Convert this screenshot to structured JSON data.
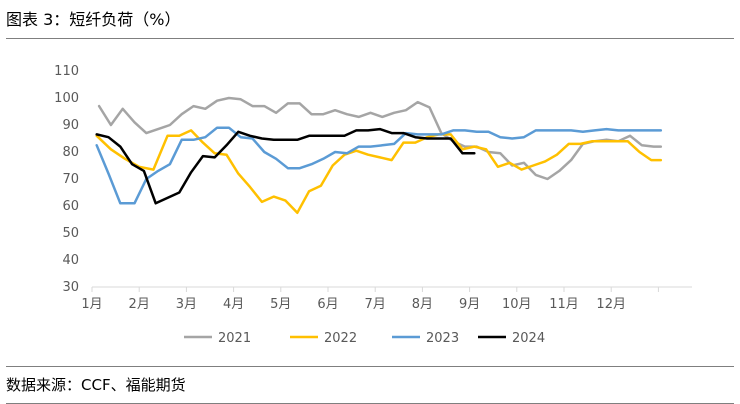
{
  "header": {
    "title": "图表 3：短纤负荷（%）"
  },
  "footer": {
    "source": "数据来源：CCF、福能期货"
  },
  "chart_data": {
    "type": "line",
    "title": "短纤负荷（%）",
    "xlabel": "",
    "ylabel": "",
    "ylim": [
      30,
      110
    ],
    "yticks": [
      30,
      40,
      50,
      60,
      70,
      80,
      90,
      100,
      110
    ],
    "xlim": [
      1,
      13
    ],
    "xticks": [
      1,
      2,
      3,
      4,
      5,
      6,
      7,
      8,
      9,
      10,
      11,
      12
    ],
    "x_tick_labels": [
      "1月",
      "2月",
      "3月",
      "4月",
      "5月",
      "6月",
      "7月",
      "8月",
      "9月",
      "10月",
      "11月",
      "12月"
    ],
    "grid": false,
    "legend": "bottom",
    "series": [
      {
        "name": "2021",
        "color": "#a5a5a5",
        "points": [
          [
            1.15,
            97
          ],
          [
            1.4,
            90
          ],
          [
            1.65,
            96
          ],
          [
            1.9,
            91
          ],
          [
            2.15,
            87
          ],
          [
            2.4,
            88.5
          ],
          [
            2.65,
            90
          ],
          [
            2.9,
            94
          ],
          [
            3.15,
            97
          ],
          [
            3.4,
            96
          ],
          [
            3.65,
            99
          ],
          [
            3.9,
            100
          ],
          [
            4.15,
            99.5
          ],
          [
            4.4,
            97
          ],
          [
            4.65,
            97
          ],
          [
            4.9,
            94.5
          ],
          [
            5.15,
            98
          ],
          [
            5.4,
            98
          ],
          [
            5.65,
            94
          ],
          [
            5.9,
            94
          ],
          [
            6.15,
            95.5
          ],
          [
            6.4,
            94
          ],
          [
            6.65,
            93
          ],
          [
            6.9,
            94.5
          ],
          [
            7.15,
            93
          ],
          [
            7.4,
            94.5
          ],
          [
            7.65,
            95.5
          ],
          [
            7.9,
            98.5
          ],
          [
            8.15,
            96.5
          ],
          [
            8.4,
            87
          ],
          [
            8.65,
            84
          ],
          [
            8.9,
            82
          ],
          [
            9.15,
            82
          ],
          [
            9.4,
            80
          ],
          [
            9.65,
            79.5
          ],
          [
            9.9,
            75
          ],
          [
            10.15,
            76
          ],
          [
            10.4,
            71.5
          ],
          [
            10.65,
            70
          ],
          [
            10.9,
            73
          ],
          [
            11.15,
            77
          ],
          [
            11.4,
            83
          ],
          [
            11.65,
            84
          ],
          [
            11.9,
            84.5
          ],
          [
            12.15,
            84
          ],
          [
            12.4,
            86
          ],
          [
            12.65,
            82.5
          ],
          [
            12.9,
            82
          ],
          [
            13.15,
            82
          ],
          [
            13.4,
            82.5
          ],
          [
            13.65,
            84
          ]
        ]
      },
      {
        "name": "2022",
        "color": "#ffc000",
        "points": [
          [
            1.1,
            86
          ],
          [
            1.4,
            81
          ],
          [
            1.7,
            77.5
          ],
          [
            2.0,
            74.5
          ],
          [
            2.3,
            73.5
          ],
          [
            2.6,
            86
          ],
          [
            2.85,
            86
          ],
          [
            3.1,
            88
          ],
          [
            3.35,
            83.5
          ],
          [
            3.6,
            79.5
          ],
          [
            3.85,
            79
          ],
          [
            4.1,
            72
          ],
          [
            4.35,
            67
          ],
          [
            4.6,
            61.5
          ],
          [
            4.85,
            63.5
          ],
          [
            5.1,
            62
          ],
          [
            5.35,
            57.5
          ],
          [
            5.6,
            65.5
          ],
          [
            5.85,
            67.5
          ],
          [
            6.1,
            75
          ],
          [
            6.35,
            79
          ],
          [
            6.6,
            80.5
          ],
          [
            6.85,
            79
          ],
          [
            7.1,
            78
          ],
          [
            7.35,
            77
          ],
          [
            7.6,
            83.5
          ],
          [
            7.85,
            83.5
          ],
          [
            8.1,
            85.5
          ],
          [
            8.35,
            86.5
          ],
          [
            8.6,
            86.5
          ],
          [
            8.85,
            81
          ],
          [
            9.1,
            82
          ],
          [
            9.35,
            81
          ],
          [
            9.6,
            74.5
          ],
          [
            9.85,
            76
          ],
          [
            10.1,
            73.5
          ],
          [
            10.35,
            75
          ],
          [
            10.6,
            76.5
          ],
          [
            10.85,
            79
          ],
          [
            11.1,
            83
          ],
          [
            11.35,
            83
          ],
          [
            11.6,
            84
          ],
          [
            11.85,
            84
          ],
          [
            12.1,
            84
          ],
          [
            12.35,
            84
          ],
          [
            12.6,
            80
          ],
          [
            12.85,
            77
          ],
          [
            13.1,
            77
          ],
          [
            13.35,
            77
          ],
          [
            13.6,
            76
          ]
        ]
      },
      {
        "name": "2023",
        "color": "#5b9bd5",
        "points": [
          [
            1.1,
            82.5
          ],
          [
            1.35,
            72
          ],
          [
            1.6,
            61
          ],
          [
            1.9,
            61
          ],
          [
            2.15,
            70
          ],
          [
            2.4,
            73
          ],
          [
            2.65,
            75.5
          ],
          [
            2.9,
            84.5
          ],
          [
            3.15,
            84.5
          ],
          [
            3.4,
            85.5
          ],
          [
            3.65,
            89
          ],
          [
            3.9,
            89
          ],
          [
            4.15,
            85.5
          ],
          [
            4.4,
            85
          ],
          [
            4.65,
            80
          ],
          [
            4.9,
            77.5
          ],
          [
            5.15,
            74
          ],
          [
            5.4,
            74
          ],
          [
            5.65,
            75.5
          ],
          [
            5.9,
            77.5
          ],
          [
            6.15,
            80
          ],
          [
            6.4,
            79.5
          ],
          [
            6.65,
            82
          ],
          [
            6.9,
            82
          ],
          [
            7.15,
            82.5
          ],
          [
            7.4,
            83
          ],
          [
            7.65,
            87
          ],
          [
            7.9,
            86.5
          ],
          [
            8.15,
            86.5
          ],
          [
            8.4,
            86.5
          ],
          [
            8.65,
            88
          ],
          [
            8.9,
            88
          ],
          [
            9.15,
            87.5
          ],
          [
            9.4,
            87.5
          ],
          [
            9.65,
            85.5
          ],
          [
            9.9,
            85
          ],
          [
            10.15,
            85.5
          ],
          [
            10.4,
            88
          ],
          [
            10.65,
            88
          ],
          [
            10.9,
            88
          ],
          [
            11.15,
            88
          ],
          [
            11.4,
            87.5
          ],
          [
            11.65,
            88
          ],
          [
            11.9,
            88.5
          ],
          [
            12.15,
            88
          ],
          [
            12.4,
            88
          ],
          [
            12.65,
            88
          ],
          [
            12.9,
            88
          ],
          [
            13.15,
            88
          ],
          [
            13.4,
            86.5
          ],
          [
            13.65,
            84
          ]
        ]
      },
      {
        "name": "2024",
        "color": "#000000",
        "points": [
          [
            1.1,
            86.5
          ],
          [
            1.35,
            85.5
          ],
          [
            1.6,
            82
          ],
          [
            1.85,
            75.5
          ],
          [
            2.1,
            73
          ],
          [
            2.35,
            61
          ],
          [
            2.6,
            63
          ],
          [
            2.85,
            65
          ],
          [
            3.1,
            72.5
          ],
          [
            3.35,
            78.5
          ],
          [
            3.6,
            78
          ],
          [
            3.85,
            82.5
          ],
          [
            4.1,
            87.5
          ],
          [
            4.35,
            86
          ],
          [
            4.6,
            85
          ],
          [
            4.85,
            84.5
          ],
          [
            5.1,
            84.5
          ],
          [
            5.35,
            84.5
          ],
          [
            5.6,
            86
          ],
          [
            5.85,
            86
          ],
          [
            6.1,
            86
          ],
          [
            6.35,
            86
          ],
          [
            6.6,
            88
          ],
          [
            6.85,
            88
          ],
          [
            7.1,
            88.5
          ],
          [
            7.35,
            87
          ],
          [
            7.6,
            87
          ],
          [
            7.85,
            85.5
          ],
          [
            8.1,
            85
          ],
          [
            8.35,
            85
          ],
          [
            8.6,
            85
          ],
          [
            8.85,
            79.5
          ],
          [
            9.1,
            79.5
          ]
        ]
      }
    ]
  }
}
